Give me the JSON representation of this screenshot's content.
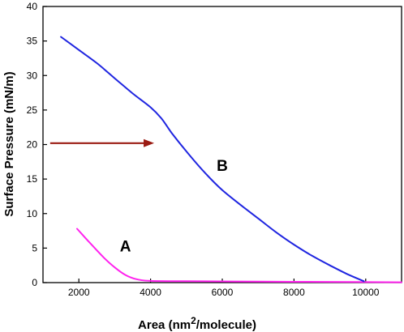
{
  "chart_data": {
    "type": "line",
    "xlabel": "Area (nm²/molecule)",
    "ylabel": "Surface Pressure (mN/m)",
    "xlabel_parts": {
      "prefix": "Area (nm",
      "superscript": "2",
      "suffix": "/molecule)"
    },
    "xlim": [
      1000,
      11000
    ],
    "ylim": [
      0,
      40
    ],
    "xticks": [
      2000,
      4000,
      6000,
      8000,
      10000
    ],
    "yticks": [
      0,
      5,
      10,
      15,
      20,
      25,
      30,
      35,
      40
    ],
    "grid": false,
    "series": [
      {
        "name": "A",
        "color": "#ff22ee",
        "points": [
          [
            1950,
            7.8
          ],
          [
            2300,
            5.8
          ],
          [
            2700,
            3.6
          ],
          [
            3000,
            2.2
          ],
          [
            3300,
            1.1
          ],
          [
            3600,
            0.5
          ],
          [
            4000,
            0.25
          ],
          [
            5000,
            0.2
          ],
          [
            7000,
            0.15
          ],
          [
            9000,
            0.1
          ],
          [
            11000,
            0.05
          ]
        ]
      },
      {
        "name": "B",
        "color": "#1f25e0",
        "points": [
          [
            1500,
            35.6
          ],
          [
            2000,
            33.7
          ],
          [
            2500,
            31.8
          ],
          [
            3000,
            29.6
          ],
          [
            3500,
            27.4
          ],
          [
            4000,
            25.4
          ],
          [
            4300,
            23.8
          ],
          [
            4600,
            21.6
          ],
          [
            5000,
            19.0
          ],
          [
            5500,
            16.0
          ],
          [
            6000,
            13.4
          ],
          [
            6500,
            11.3
          ],
          [
            7000,
            9.3
          ],
          [
            7500,
            7.3
          ],
          [
            8000,
            5.5
          ],
          [
            8500,
            3.9
          ],
          [
            9000,
            2.5
          ],
          [
            9500,
            1.2
          ],
          [
            9950,
            0.2
          ]
        ]
      }
    ],
    "annotations": [
      {
        "text": "A",
        "x": 3300,
        "y": 4.5
      },
      {
        "text": "B",
        "x": 6000,
        "y": 16.2
      }
    ],
    "arrow": {
      "color": "#9b1b13",
      "from": [
        1200,
        20.2
      ],
      "to": [
        4100,
        20.2
      ]
    }
  }
}
